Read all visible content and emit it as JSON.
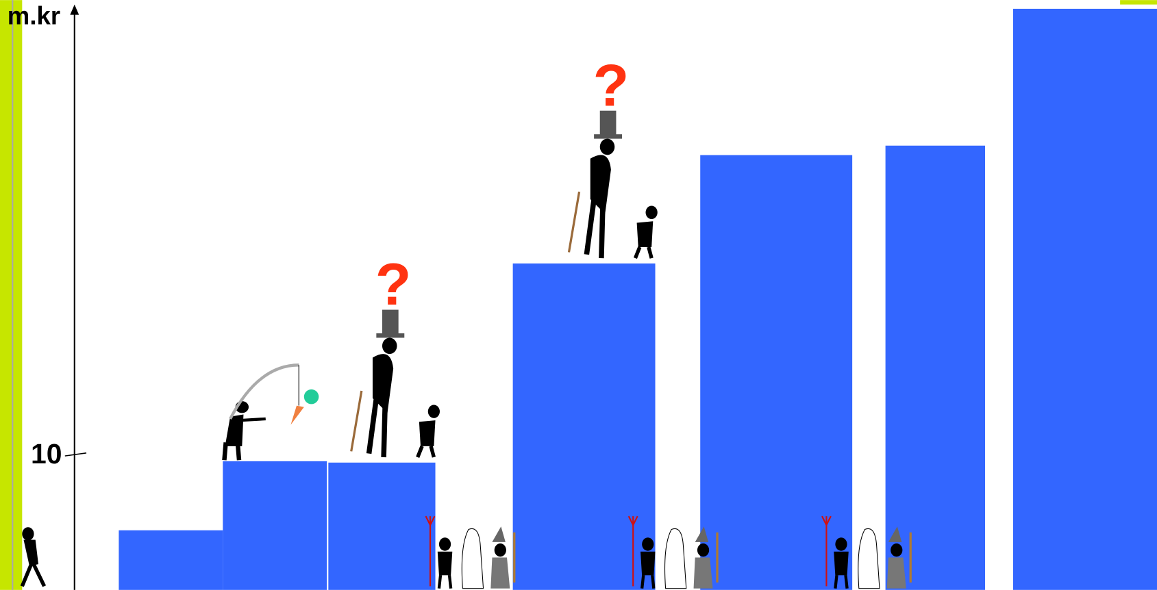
{
  "chart_data": {
    "type": "bar",
    "y_label": "m.kr",
    "values": [
      4.4,
      9.5,
      9.4,
      24.1,
      32.1,
      32.8,
      42.9
    ],
    "color": "#3366ff",
    "ylim": [
      0,
      43
    ],
    "yticks": [
      10
    ],
    "annotations": [
      "?",
      "?"
    ]
  }
}
